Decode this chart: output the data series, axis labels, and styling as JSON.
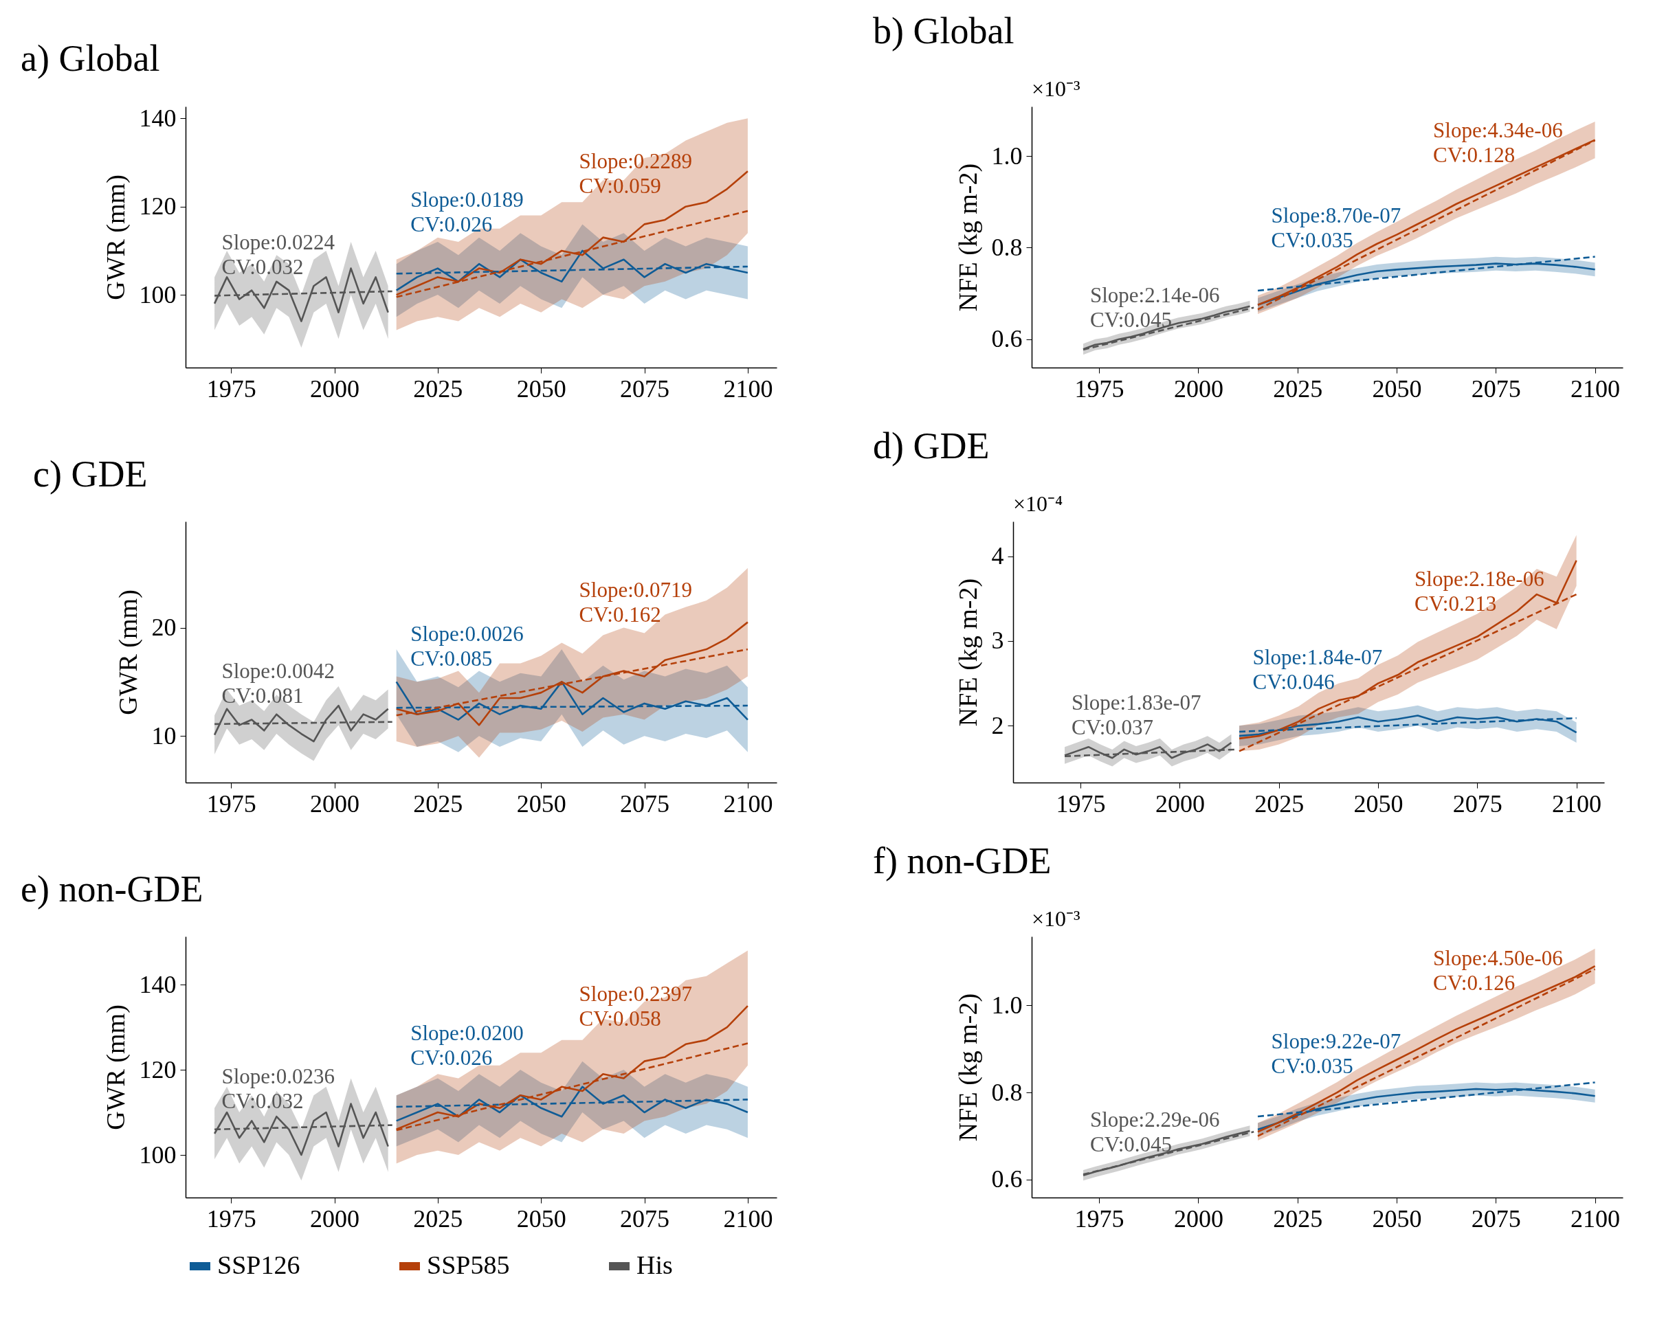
{
  "chart_data": [
    {
      "type": "line",
      "title": "a) Global",
      "ylabel": "GWR (mm)",
      "xlim": [
        1964,
        2107
      ],
      "xticks": [
        1975,
        2000,
        2025,
        2050,
        2075,
        2100
      ],
      "ylim": [
        83.5,
        142.7
      ],
      "yticks": [
        100,
        120,
        140
      ],
      "legend": "bottom",
      "series": [
        {
          "name": "SSP126",
          "color": "#0f5c96",
          "x": [
            2015,
            2020,
            2025,
            2030,
            2035,
            2040,
            2045,
            2050,
            2055,
            2060,
            2065,
            2070,
            2075,
            2080,
            2085,
            2090,
            2095,
            2100
          ],
          "values": [
            101,
            104,
            106,
            103,
            107,
            104,
            108,
            105,
            103,
            110,
            106,
            108,
            104,
            107,
            105,
            107,
            106,
            105
          ],
          "lower": [
            95,
            98,
            100,
            97,
            101,
            98,
            102,
            99,
            97,
            104,
            100,
            102,
            98,
            101,
            99,
            101,
            100,
            99
          ],
          "upper": [
            107,
            110,
            112,
            109,
            113,
            110,
            114,
            111,
            109,
            116,
            112,
            114,
            110,
            113,
            111,
            113,
            112,
            111
          ]
        },
        {
          "name": "SSP585",
          "color": "#b5400a",
          "x": [
            2015,
            2020,
            2025,
            2030,
            2035,
            2040,
            2045,
            2050,
            2055,
            2060,
            2065,
            2070,
            2075,
            2080,
            2085,
            2090,
            2095,
            2100
          ],
          "values": [
            100,
            102,
            104,
            103,
            106,
            105,
            108,
            107,
            110,
            109,
            113,
            112,
            116,
            117,
            120,
            121,
            124,
            128
          ],
          "lower": [
            92,
            94,
            95,
            94,
            97,
            95,
            98,
            96,
            99,
            97,
            100,
            99,
            102,
            103,
            105,
            106,
            109,
            114
          ],
          "upper": [
            108,
            110,
            113,
            112,
            115,
            115,
            118,
            118,
            121,
            121,
            126,
            126,
            131,
            132,
            135,
            137,
            139,
            140
          ]
        },
        {
          "name": "His",
          "color": "#555555",
          "x": [
            1971,
            1974,
            1977,
            1980,
            1983,
            1986,
            1989,
            1992,
            1995,
            1998,
            2001,
            2004,
            2007,
            2010,
            2013
          ],
          "values": [
            98,
            104,
            99,
            101,
            97,
            103,
            101,
            94,
            102,
            104,
            96,
            106,
            98,
            104,
            96
          ],
          "lower": [
            92,
            98,
            93,
            95,
            91,
            97,
            95,
            88,
            96,
            98,
            90,
            100,
            92,
            98,
            90
          ],
          "upper": [
            104,
            110,
            105,
            107,
            103,
            109,
            107,
            100,
            108,
            110,
            102,
            112,
            104,
            110,
            102
          ]
        },
        {
          "type": "line",
          "line_style": "dashed",
          "color": "#555555",
          "x": [
            1971,
            2014
          ],
          "values": [
            99.8,
            100.8
          ]
        },
        {
          "type": "line",
          "line_style": "dashed",
          "color": "#0f5c96",
          "x": [
            2015,
            2100
          ],
          "values": [
            104.8,
            106.4
          ]
        },
        {
          "type": "line",
          "line_style": "dashed",
          "color": "#b5400a",
          "x": [
            2015,
            2100
          ],
          "values": [
            99.5,
            119
          ]
        }
      ],
      "annotations": [
        "Slope:0.0224\nCV:0.032",
        "Slope:0.0189\nCV:0.026",
        "Slope:0.2289\nCV:0.059"
      ]
    },
    {
      "type": "line",
      "title": "b) Global",
      "ylabel": "NFE (kg m-2)",
      "xlim": [
        1958,
        2107
      ],
      "xticks": [
        1975,
        2000,
        2025,
        2050,
        2075,
        2100
      ],
      "ylim": [
        0.538,
        1.108
      ],
      "yticks": [
        0.6,
        0.8,
        {
          "value": 1,
          "label": "1.0"
        }
      ],
      "legend": "bottom",
      "series": [
        {
          "name": "SSP126",
          "color": "#0f5c96",
          "x": [
            2015,
            2020,
            2025,
            2030,
            2035,
            2040,
            2045,
            2050,
            2055,
            2060,
            2065,
            2070,
            2075,
            2080,
            2085,
            2090,
            2095,
            2100
          ],
          "values": [
            0.675,
            0.69,
            0.705,
            0.72,
            0.73,
            0.74,
            0.748,
            0.752,
            0.755,
            0.758,
            0.76,
            0.762,
            0.765,
            0.763,
            0.765,
            0.762,
            0.758,
            0.752
          ],
          "lower": [
            0.66,
            0.675,
            0.69,
            0.705,
            0.715,
            0.725,
            0.733,
            0.737,
            0.74,
            0.743,
            0.745,
            0.747,
            0.75,
            0.748,
            0.75,
            0.747,
            0.743,
            0.737
          ],
          "upper": [
            0.69,
            0.705,
            0.72,
            0.735,
            0.745,
            0.755,
            0.763,
            0.767,
            0.77,
            0.773,
            0.775,
            0.777,
            0.78,
            0.778,
            0.78,
            0.777,
            0.773,
            0.767
          ]
        },
        {
          "name": "SSP585",
          "color": "#b5400a",
          "x": [
            2015,
            2020,
            2025,
            2030,
            2035,
            2040,
            2045,
            2050,
            2055,
            2060,
            2065,
            2070,
            2075,
            2080,
            2085,
            2090,
            2095,
            2100
          ],
          "values": [
            0.675,
            0.692,
            0.712,
            0.735,
            0.758,
            0.785,
            0.808,
            0.828,
            0.85,
            0.872,
            0.895,
            0.915,
            0.935,
            0.955,
            0.975,
            0.995,
            1.015,
            1.035
          ],
          "lower": [
            0.655,
            0.672,
            0.69,
            0.712,
            0.734,
            0.76,
            0.782,
            0.8,
            0.82,
            0.842,
            0.864,
            0.882,
            0.9,
            0.918,
            0.938,
            0.956,
            0.975,
            0.995
          ],
          "upper": [
            0.695,
            0.712,
            0.734,
            0.758,
            0.782,
            0.81,
            0.834,
            0.856,
            0.88,
            0.902,
            0.926,
            0.948,
            0.97,
            0.992,
            1.012,
            1.034,
            1.055,
            1.075
          ]
        },
        {
          "name": "His",
          "color": "#555555",
          "x": [
            1971,
            1974,
            1977,
            1980,
            1983,
            1986,
            1989,
            1992,
            1995,
            1998,
            2001,
            2004,
            2007,
            2010,
            2013
          ],
          "values": [
            0.578,
            0.588,
            0.592,
            0.6,
            0.605,
            0.612,
            0.62,
            0.628,
            0.635,
            0.64,
            0.645,
            0.652,
            0.66,
            0.665,
            0.672
          ],
          "lower": [
            0.566,
            0.576,
            0.58,
            0.588,
            0.593,
            0.6,
            0.608,
            0.616,
            0.623,
            0.628,
            0.633,
            0.64,
            0.648,
            0.653,
            0.66
          ],
          "upper": [
            0.59,
            0.6,
            0.604,
            0.612,
            0.617,
            0.624,
            0.632,
            0.64,
            0.647,
            0.652,
            0.657,
            0.664,
            0.672,
            0.677,
            0.684
          ]
        },
        {
          "type": "line",
          "line_style": "dashed",
          "color": "#555555",
          "x": [
            1971,
            2014
          ],
          "values": [
            0.577,
            0.669
          ]
        },
        {
          "type": "line",
          "line_style": "dashed",
          "color": "#0f5c96",
          "x": [
            2015,
            2100
          ],
          "values": [
            0.706,
            0.78
          ]
        },
        {
          "type": "line",
          "line_style": "dashed",
          "color": "#b5400a",
          "x": [
            2015,
            2100
          ],
          "values": [
            0.665,
            1.034
          ]
        }
      ],
      "annotations": [
        "×10⁻³",
        "Slope:2.14e-06\nCV:0.045",
        "Slope:8.70e-07\nCV:0.035",
        "Slope:4.34e-06\nCV:0.128"
      ]
    },
    {
      "type": "line",
      "title": "c) GDE",
      "ylabel": "GWR (mm)",
      "xlim": [
        1964,
        2107
      ],
      "xticks": [
        1975,
        2000,
        2025,
        2050,
        2075,
        2100
      ],
      "ylim": [
        5.7,
        29.8
      ],
      "yticks": [
        10,
        20
      ],
      "legend": "bottom",
      "series": [
        {
          "name": "SSP126",
          "color": "#0f5c96",
          "x": [
            2015,
            2020,
            2025,
            2030,
            2035,
            2040,
            2045,
            2050,
            2055,
            2060,
            2065,
            2070,
            2075,
            2080,
            2085,
            2090,
            2095,
            2100
          ],
          "values": [
            15,
            12,
            12.5,
            11.5,
            13,
            12,
            12.8,
            12.5,
            15,
            12,
            13.5,
            12.2,
            13,
            12.5,
            13.2,
            12.8,
            13.5,
            11.5
          ],
          "lower": [
            12,
            9,
            9.5,
            8.5,
            10,
            9,
            9.8,
            9.5,
            12,
            9,
            10.5,
            9.2,
            10,
            9.5,
            10.2,
            9.8,
            10.5,
            8.5
          ],
          "upper": [
            18,
            15,
            15.5,
            14.5,
            16,
            15,
            15.8,
            15.5,
            18,
            15,
            16.5,
            15.2,
            16,
            15.5,
            16.2,
            15.8,
            16.5,
            14.5
          ]
        },
        {
          "name": "SSP585",
          "color": "#b5400a",
          "x": [
            2015,
            2020,
            2025,
            2030,
            2035,
            2040,
            2045,
            2050,
            2055,
            2060,
            2065,
            2070,
            2075,
            2080,
            2085,
            2090,
            2095,
            2100
          ],
          "values": [
            12.5,
            12,
            12.3,
            13,
            11,
            13.5,
            13.5,
            14,
            15,
            14,
            15.5,
            16,
            15.5,
            17,
            17.5,
            18,
            19,
            20.5
          ],
          "lower": [
            9.5,
            9,
            9.3,
            10,
            8,
            10.3,
            10.3,
            10.6,
            11.4,
            10.4,
            11.7,
            12,
            11.5,
            12.8,
            13.1,
            13.5,
            14.3,
            15.5
          ],
          "upper": [
            15.5,
            15,
            15.3,
            16,
            14,
            16.7,
            16.7,
            17.4,
            18.6,
            17.6,
            19.3,
            20,
            19.5,
            21.2,
            21.9,
            22.5,
            23.7,
            25.5
          ]
        },
        {
          "name": "His",
          "color": "#555555",
          "x": [
            1971,
            1974,
            1977,
            1980,
            1983,
            1986,
            1989,
            1992,
            1995,
            1998,
            2001,
            2004,
            2007,
            2010,
            2013
          ],
          "values": [
            10.1,
            12.5,
            11,
            11.5,
            10.5,
            12,
            11,
            10.2,
            9.5,
            11.5,
            12.8,
            10.5,
            12,
            11.5,
            12.5
          ],
          "lower": [
            8.3,
            10.7,
            9.2,
            9.7,
            8.7,
            10.2,
            9.2,
            8.4,
            7.7,
            9.7,
            11,
            8.7,
            10.2,
            9.7,
            10.7
          ],
          "upper": [
            11.9,
            14.3,
            12.8,
            13.3,
            12.3,
            13.8,
            12.8,
            12,
            11.3,
            13.3,
            14.6,
            12.3,
            13.8,
            13.3,
            14.3
          ]
        },
        {
          "type": "line",
          "line_style": "dashed",
          "color": "#555555",
          "x": [
            1971,
            2014
          ],
          "values": [
            11.1,
            11.3
          ]
        },
        {
          "type": "line",
          "line_style": "dashed",
          "color": "#0f5c96",
          "x": [
            2015,
            2100
          ],
          "values": [
            12.6,
            12.8
          ]
        },
        {
          "type": "line",
          "line_style": "dashed",
          "color": "#b5400a",
          "x": [
            2015,
            2100
          ],
          "values": [
            11.9,
            18
          ]
        }
      ],
      "annotations": [
        "Slope:0.0042\nCV:0.081",
        "Slope:0.0026\nCV:0.085",
        "Slope:0.0719\nCV:0.162"
      ]
    },
    {
      "type": "line",
      "title": "d) GDE",
      "ylabel": "NFE (kg m-2)",
      "xlim": [
        1958,
        2107
      ],
      "xticks": [
        1975,
        2000,
        2025,
        2050,
        2075,
        2100
      ],
      "ylim": [
        1.33,
        4.41
      ],
      "yticks": [
        2,
        3,
        4
      ],
      "legend": "bottom",
      "series": [
        {
          "name": "SSP126",
          "color": "#0f5c96",
          "x": [
            2015,
            2020,
            2025,
            2030,
            2035,
            2040,
            2045,
            2050,
            2055,
            2060,
            2065,
            2070,
            2075,
            2080,
            2085,
            2090,
            2095,
            2100
          ],
          "values": [
            1.88,
            1.9,
            1.95,
            2,
            2.02,
            2.05,
            2.1,
            2.05,
            2.08,
            2.12,
            2.05,
            2.1,
            2.08,
            2.1,
            2.05,
            2.08,
            2.05,
            1.92
          ],
          "lower": [
            1.76,
            1.78,
            1.83,
            1.88,
            1.9,
            1.93,
            1.98,
            1.93,
            1.96,
            2,
            1.93,
            1.98,
            1.96,
            1.98,
            1.93,
            1.96,
            1.93,
            1.8
          ],
          "upper": [
            2,
            2.02,
            2.07,
            2.12,
            2.14,
            2.17,
            2.22,
            2.17,
            2.2,
            2.24,
            2.17,
            2.22,
            2.2,
            2.22,
            2.17,
            2.2,
            2.17,
            2.04
          ]
        },
        {
          "name": "SSP585",
          "color": "#b5400a",
          "x": [
            2015,
            2020,
            2025,
            2030,
            2035,
            2040,
            2045,
            2050,
            2055,
            2060,
            2065,
            2070,
            2075,
            2080,
            2085,
            2090,
            2095,
            2100
          ],
          "values": [
            1.85,
            1.88,
            1.95,
            2.05,
            2.2,
            2.3,
            2.35,
            2.5,
            2.6,
            2.75,
            2.85,
            2.95,
            3.05,
            3.2,
            3.35,
            3.55,
            3.45,
            3.95
          ],
          "lower": [
            1.7,
            1.72,
            1.78,
            1.87,
            2.01,
            2.1,
            2.14,
            2.28,
            2.37,
            2.51,
            2.6,
            2.69,
            2.78,
            2.92,
            3.06,
            3.25,
            3.14,
            3.65
          ],
          "upper": [
            2,
            2.04,
            2.12,
            2.23,
            2.39,
            2.5,
            2.56,
            2.72,
            2.83,
            2.99,
            3.1,
            3.21,
            3.32,
            3.48,
            3.64,
            3.85,
            3.76,
            4.25
          ]
        },
        {
          "name": "His",
          "color": "#555555",
          "x": [
            1971,
            1974,
            1977,
            1980,
            1983,
            1986,
            1989,
            1992,
            1995,
            1998,
            2001,
            2004,
            2007,
            2010,
            2013
          ],
          "values": [
            1.65,
            1.7,
            1.75,
            1.68,
            1.62,
            1.72,
            1.66,
            1.7,
            1.75,
            1.62,
            1.68,
            1.72,
            1.78,
            1.7,
            1.8
          ],
          "lower": [
            1.55,
            1.6,
            1.65,
            1.58,
            1.52,
            1.62,
            1.56,
            1.6,
            1.65,
            1.52,
            1.58,
            1.62,
            1.68,
            1.6,
            1.7
          ],
          "upper": [
            1.75,
            1.8,
            1.85,
            1.78,
            1.72,
            1.82,
            1.76,
            1.8,
            1.85,
            1.72,
            1.78,
            1.82,
            1.88,
            1.8,
            1.9
          ]
        },
        {
          "type": "line",
          "line_style": "dashed",
          "color": "#555555",
          "x": [
            1971,
            2014
          ],
          "values": [
            1.64,
            1.72
          ]
        },
        {
          "type": "line",
          "line_style": "dashed",
          "color": "#0f5c96",
          "x": [
            2015,
            2100
          ],
          "values": [
            1.93,
            2.09
          ]
        },
        {
          "type": "line",
          "line_style": "dashed",
          "color": "#b5400a",
          "x": [
            2015,
            2100
          ],
          "values": [
            1.7,
            3.55
          ]
        }
      ],
      "annotations": [
        "×10⁻⁴",
        "Slope:1.83e-07\nCV:0.037",
        "Slope:1.84e-07\nCV:0.046",
        "Slope:2.18e-06\nCV:0.213"
      ]
    },
    {
      "type": "line",
      "title": "e) non-GDE",
      "ylabel": "GWR (mm)",
      "xlim": [
        1964,
        2107
      ],
      "xticks": [
        1975,
        2000,
        2025,
        2050,
        2075,
        2100
      ],
      "ylim": [
        90,
        151.3
      ],
      "yticks": [
        100,
        120,
        140
      ],
      "legend": "bottom",
      "series": [
        {
          "name": "SSP126",
          "color": "#0f5c96",
          "x": [
            2015,
            2020,
            2025,
            2030,
            2035,
            2040,
            2045,
            2050,
            2055,
            2060,
            2065,
            2070,
            2075,
            2080,
            2085,
            2090,
            2095,
            2100
          ],
          "values": [
            108,
            110,
            112,
            109,
            113,
            110,
            114,
            111,
            109,
            116,
            112,
            114,
            110,
            113,
            111,
            113,
            112,
            110
          ],
          "lower": [
            102,
            104,
            106,
            103,
            107,
            104,
            108,
            105,
            103,
            110,
            106,
            108,
            104,
            107,
            105,
            107,
            106,
            104
          ],
          "upper": [
            114,
            116,
            118,
            115,
            119,
            116,
            120,
            117,
            115,
            122,
            118,
            120,
            116,
            119,
            117,
            119,
            118,
            116
          ]
        },
        {
          "name": "SSP585",
          "color": "#b5400a",
          "x": [
            2015,
            2020,
            2025,
            2030,
            2035,
            2040,
            2045,
            2050,
            2055,
            2060,
            2065,
            2070,
            2075,
            2080,
            2085,
            2090,
            2095,
            2100
          ],
          "values": [
            106,
            108,
            110,
            109,
            112,
            111,
            114,
            113,
            116,
            115,
            119,
            118,
            122,
            123,
            126,
            127,
            130,
            135
          ],
          "lower": [
            98,
            100,
            101,
            100,
            103,
            101,
            104,
            102,
            105,
            103,
            106,
            105,
            108,
            109,
            111,
            112,
            115,
            121
          ],
          "upper": [
            114,
            116,
            119,
            118,
            121,
            121,
            124,
            124,
            127,
            127,
            132,
            131,
            136,
            137,
            141,
            142,
            145,
            148
          ]
        },
        {
          "name": "His",
          "color": "#555555",
          "x": [
            1971,
            1974,
            1977,
            1980,
            1983,
            1986,
            1989,
            1992,
            1995,
            1998,
            2001,
            2004,
            2007,
            2010,
            2013
          ],
          "values": [
            105,
            110,
            104,
            108,
            103,
            109,
            106,
            100,
            108,
            110,
            102,
            112,
            104,
            110,
            102
          ],
          "lower": [
            99,
            104,
            98,
            102,
            97,
            103,
            100,
            94,
            102,
            104,
            96,
            106,
            98,
            104,
            96
          ],
          "upper": [
            111,
            116,
            110,
            114,
            109,
            115,
            112,
            106,
            114,
            116,
            108,
            118,
            110,
            116,
            108
          ]
        },
        {
          "type": "line",
          "line_style": "dashed",
          "color": "#555555",
          "x": [
            1971,
            2014
          ],
          "values": [
            106,
            107
          ]
        },
        {
          "type": "line",
          "line_style": "dashed",
          "color": "#0f5c96",
          "x": [
            2015,
            2100
          ],
          "values": [
            111.3,
            113
          ]
        },
        {
          "type": "line",
          "line_style": "dashed",
          "color": "#b5400a",
          "x": [
            2015,
            2100
          ],
          "values": [
            105.8,
            126.2
          ]
        }
      ],
      "annotations": [
        "Slope:0.0236\nCV:0.032",
        "Slope:0.0200\nCV:0.026",
        "Slope:0.2397\nCV:0.058"
      ]
    },
    {
      "type": "line",
      "title": "f) non-GDE",
      "ylabel": "NFE (kg m-2)",
      "xlim": [
        1958,
        2107
      ],
      "xticks": [
        1975,
        2000,
        2025,
        2050,
        2075,
        2100
      ],
      "ylim": [
        0.559,
        1.158
      ],
      "yticks": [
        0.6,
        0.8,
        {
          "value": 1,
          "label": "1.0"
        }
      ],
      "legend": "bottom",
      "series": [
        {
          "name": "SSP126",
          "color": "#0f5c96",
          "x": [
            2015,
            2020,
            2025,
            2030,
            2035,
            2040,
            2045,
            2050,
            2055,
            2060,
            2065,
            2070,
            2075,
            2080,
            2085,
            2090,
            2095,
            2100
          ],
          "values": [
            0.715,
            0.73,
            0.748,
            0.762,
            0.772,
            0.782,
            0.79,
            0.795,
            0.8,
            0.802,
            0.805,
            0.808,
            0.806,
            0.808,
            0.805,
            0.802,
            0.798,
            0.792
          ],
          "lower": [
            0.7,
            0.715,
            0.733,
            0.747,
            0.757,
            0.767,
            0.775,
            0.78,
            0.785,
            0.787,
            0.79,
            0.793,
            0.791,
            0.793,
            0.79,
            0.787,
            0.783,
            0.777
          ],
          "upper": [
            0.73,
            0.745,
            0.763,
            0.777,
            0.787,
            0.797,
            0.805,
            0.81,
            0.815,
            0.817,
            0.82,
            0.823,
            0.821,
            0.823,
            0.82,
            0.817,
            0.813,
            0.807
          ]
        },
        {
          "name": "SSP585",
          "color": "#b5400a",
          "x": [
            2015,
            2020,
            2025,
            2030,
            2035,
            2040,
            2045,
            2050,
            2055,
            2060,
            2065,
            2070,
            2075,
            2080,
            2085,
            2090,
            2095,
            2100
          ],
          "values": [
            0.71,
            0.73,
            0.752,
            0.776,
            0.8,
            0.828,
            0.852,
            0.875,
            0.898,
            0.922,
            0.945,
            0.965,
            0.985,
            1.005,
            1.025,
            1.045,
            1.065,
            1.09
          ],
          "lower": [
            0.69,
            0.71,
            0.73,
            0.753,
            0.776,
            0.803,
            0.826,
            0.847,
            0.868,
            0.892,
            0.914,
            0.932,
            0.95,
            0.968,
            0.988,
            1.006,
            1.025,
            1.05
          ],
          "upper": [
            0.73,
            0.75,
            0.774,
            0.799,
            0.824,
            0.853,
            0.878,
            0.903,
            0.928,
            0.952,
            0.976,
            0.998,
            1.02,
            1.042,
            1.062,
            1.084,
            1.105,
            1.13
          ]
        },
        {
          "name": "His",
          "color": "#555555",
          "x": [
            1971,
            1974,
            1977,
            1980,
            1983,
            1986,
            1989,
            1992,
            1995,
            1998,
            2001,
            2004,
            2007,
            2010,
            2013
          ],
          "values": [
            0.61,
            0.618,
            0.625,
            0.632,
            0.64,
            0.648,
            0.655,
            0.662,
            0.67,
            0.676,
            0.682,
            0.69,
            0.698,
            0.705,
            0.712
          ],
          "lower": [
            0.598,
            0.606,
            0.613,
            0.62,
            0.628,
            0.636,
            0.643,
            0.65,
            0.658,
            0.664,
            0.67,
            0.678,
            0.686,
            0.693,
            0.7
          ],
          "upper": [
            0.622,
            0.63,
            0.637,
            0.644,
            0.652,
            0.66,
            0.667,
            0.674,
            0.682,
            0.688,
            0.694,
            0.702,
            0.71,
            0.717,
            0.724
          ]
        },
        {
          "type": "line",
          "line_style": "dashed",
          "color": "#555555",
          "x": [
            1971,
            2014
          ],
          "values": [
            0.612,
            0.71
          ]
        },
        {
          "type": "line",
          "line_style": "dashed",
          "color": "#0f5c96",
          "x": [
            2015,
            2100
          ],
          "values": [
            0.745,
            0.823
          ]
        },
        {
          "type": "line",
          "line_style": "dashed",
          "color": "#b5400a",
          "x": [
            2015,
            2100
          ],
          "values": [
            0.7,
            1.083
          ]
        }
      ],
      "annotations": [
        "×10⁻³",
        "Slope:2.29e-06\nCV:0.045",
        "Slope:9.22e-07\nCV:0.035",
        "Slope:4.50e-06\nCV:0.126"
      ]
    }
  ]
}
